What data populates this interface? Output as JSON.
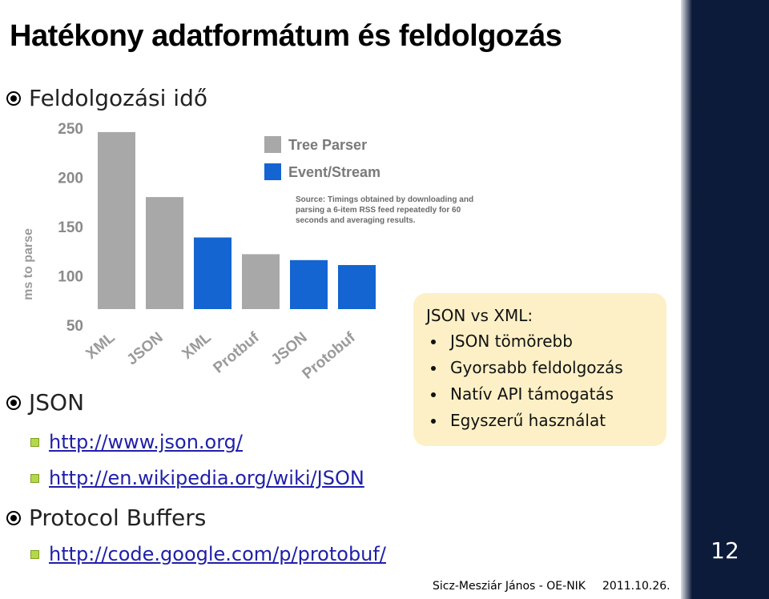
{
  "slide": {
    "title": "Hatékony adatformátum és feldolgozás",
    "page_number": "12"
  },
  "bullets": {
    "processing_time": "Feldolgozási idő",
    "json": "JSON",
    "json_link1": "http://www.json.org/",
    "json_link2": "http://en.wikipedia.org/wiki/JSON",
    "protobuf": "Protocol Buffers",
    "protobuf_link": "http://code.google.com/p/protobuf/"
  },
  "callout": {
    "title": "JSON vs XML:",
    "items": [
      "JSON tömörebb",
      "Gyorsabb feldolgozás",
      "Natív API támogatás",
      "Egyszerű használat"
    ]
  },
  "footer": {
    "author": "Sicz-Mesziár János - OE-NIK",
    "date": "2011.10.26."
  },
  "chart_data": {
    "type": "bar",
    "ylabel": "ms to parse",
    "ylim": [
      50,
      250
    ],
    "yticks": [
      250,
      200,
      150,
      100,
      50
    ],
    "categories": [
      "XML",
      "JSON",
      "XML",
      "Protbuf",
      "JSON",
      "Protobuf"
    ],
    "values": [
      246,
      180,
      139,
      122,
      116,
      111
    ],
    "colors": [
      "#a8a8a8",
      "#a8a8a8",
      "#1464d2",
      "#a8a8a8",
      "#1464d2",
      "#1464d2"
    ],
    "legend": [
      {
        "name": "Tree Parser",
        "color": "#a8a8a8"
      },
      {
        "name": "Event/Stream",
        "color": "#1464d2"
      }
    ],
    "legend_position": "top-right",
    "annotation": [
      "Source: Timings obtained by downloading and",
      "parsing a 6-item RSS feed repeatedly for 60",
      "seconds and averaging results."
    ],
    "grid": false
  }
}
